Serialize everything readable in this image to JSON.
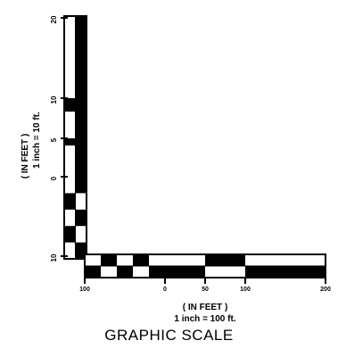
{
  "title": "GRAPHIC SCALE",
  "vertical_scale": {
    "unit_label": "( IN FEET )",
    "ratio_label": "1 inch = 10 ft.",
    "tick_labels": [
      "20",
      "10",
      "5",
      "0",
      "10"
    ]
  },
  "horizontal_scale": {
    "unit_label": "( IN FEET )",
    "ratio_label": "1 inch = 100 ft.",
    "tick_labels": [
      "100",
      "0",
      "50",
      "100",
      "200"
    ]
  },
  "colors": {
    "ink": "#000000",
    "paper": "#ffffff"
  }
}
